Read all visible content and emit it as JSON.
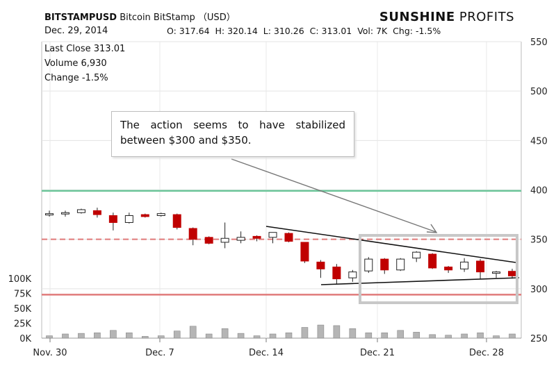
{
  "header": {
    "symbol": "BITSTAMPUSD",
    "name": "Bitcoin BitStamp （USD）",
    "date": "Dec. 29, 2014",
    "ohlc": "O: 317.64  H: 320.14  L: 310.26  C: 313.01  Vol: 7K  Chg: -1.5%",
    "brand_bold": "SUNSHINE",
    "brand_light": " PROFITS"
  },
  "stats": {
    "last_close": "Last Close  313.01",
    "volume": "Volume  6,930",
    "change": "Change  -1.5%"
  },
  "annotation": {
    "line1": "The action seems to have stabilized",
    "line2": "between $300 and $350."
  },
  "colors": {
    "up": "#ffffff",
    "down": "#c00000",
    "green_line": "#6cc69a",
    "red_line": "#e07a7a",
    "volume": "#b5b5b5",
    "box": "#c8c8c8"
  },
  "chart_data": {
    "type": "candlestick",
    "x_ticks": [
      "Nov. 30",
      "Dec. 7",
      "Dec. 14",
      "Dec. 21",
      "Dec. 28"
    ],
    "y_ticks": [
      250,
      300,
      350,
      400,
      450,
      500,
      550
    ],
    "ylim": [
      250,
      550
    ],
    "volume_ticks": [
      "0K",
      "25K",
      "50K",
      "75K",
      "100K"
    ],
    "volume_max": 100,
    "levels": {
      "green_solid": 399,
      "red_dashed": 350,
      "red_solid": 294
    },
    "candles": [
      {
        "d": "Dec 1",
        "o": 376,
        "h": 379,
        "l": 373,
        "c": 376,
        "v": 4
      },
      {
        "d": "Dec 2",
        "o": 377,
        "h": 379,
        "l": 373,
        "c": 377,
        "v": 7
      },
      {
        "d": "Dec 3",
        "o": 377,
        "h": 381,
        "l": 376,
        "c": 380,
        "v": 8
      },
      {
        "d": "Dec 4",
        "o": 379,
        "h": 382,
        "l": 372,
        "c": 375,
        "v": 9
      },
      {
        "d": "Dec 5",
        "o": 374,
        "h": 377,
        "l": 359,
        "c": 367,
        "v": 13
      },
      {
        "d": "Dec 6",
        "o": 367,
        "h": 377,
        "l": 366,
        "c": 374,
        "v": 9
      },
      {
        "d": "Dec 7",
        "o": 375,
        "h": 376,
        "l": 372,
        "c": 373,
        "v": 3
      },
      {
        "d": "Dec 8",
        "o": 374,
        "h": 377,
        "l": 373,
        "c": 376,
        "v": 4
      },
      {
        "d": "Dec 9",
        "o": 375,
        "h": 376,
        "l": 360,
        "c": 362,
        "v": 12
      },
      {
        "d": "Dec 10",
        "o": 361,
        "h": 362,
        "l": 344,
        "c": 350,
        "v": 20
      },
      {
        "d": "Dec 11",
        "o": 352,
        "h": 353,
        "l": 345,
        "c": 346,
        "v": 7
      },
      {
        "d": "Dec 12",
        "o": 347,
        "h": 367,
        "l": 341,
        "c": 351,
        "v": 16
      },
      {
        "d": "Dec 13",
        "o": 349,
        "h": 358,
        "l": 346,
        "c": 352,
        "v": 8
      },
      {
        "d": "Dec 14",
        "o": 353,
        "h": 354,
        "l": 348,
        "c": 351,
        "v": 4
      },
      {
        "d": "Dec 15",
        "o": 352,
        "h": 357,
        "l": 346,
        "c": 357,
        "v": 7
      },
      {
        "d": "Dec 16",
        "o": 356,
        "h": 357,
        "l": 347,
        "c": 348,
        "v": 9
      },
      {
        "d": "Dec 17",
        "o": 347,
        "h": 347,
        "l": 326,
        "c": 328,
        "v": 18
      },
      {
        "d": "Dec 18",
        "o": 327,
        "h": 329,
        "l": 311,
        "c": 320,
        "v": 22
      },
      {
        "d": "Dec 19",
        "o": 322,
        "h": 325,
        "l": 305,
        "c": 310,
        "v": 21
      },
      {
        "d": "Dec 20",
        "o": 311,
        "h": 319,
        "l": 307,
        "c": 317,
        "v": 16
      },
      {
        "d": "Dec 21",
        "o": 318,
        "h": 332,
        "l": 316,
        "c": 330,
        "v": 9
      },
      {
        "d": "Dec 22",
        "o": 330,
        "h": 331,
        "l": 315,
        "c": 319,
        "v": 9
      },
      {
        "d": "Dec 23",
        "o": 319,
        "h": 331,
        "l": 318,
        "c": 330,
        "v": 13
      },
      {
        "d": "Dec 24",
        "o": 331,
        "h": 338,
        "l": 327,
        "c": 337,
        "v": 10
      },
      {
        "d": "Dec 25",
        "o": 335,
        "h": 336,
        "l": 320,
        "c": 321,
        "v": 6
      },
      {
        "d": "Dec 26",
        "o": 322,
        "h": 323,
        "l": 316,
        "c": 319,
        "v": 5
      },
      {
        "d": "Dec 27",
        "o": 320,
        "h": 331,
        "l": 317,
        "c": 327,
        "v": 7
      },
      {
        "d": "Dec 28",
        "o": 328,
        "h": 330,
        "l": 310,
        "c": 317,
        "v": 9
      },
      {
        "d": "Dec 29a",
        "o": 316,
        "h": 318,
        "l": 311,
        "c": 317,
        "v": 4
      },
      {
        "d": "Dec 29",
        "o": 317.64,
        "h": 320.14,
        "l": 310.26,
        "c": 313.01,
        "v": 7
      }
    ]
  }
}
